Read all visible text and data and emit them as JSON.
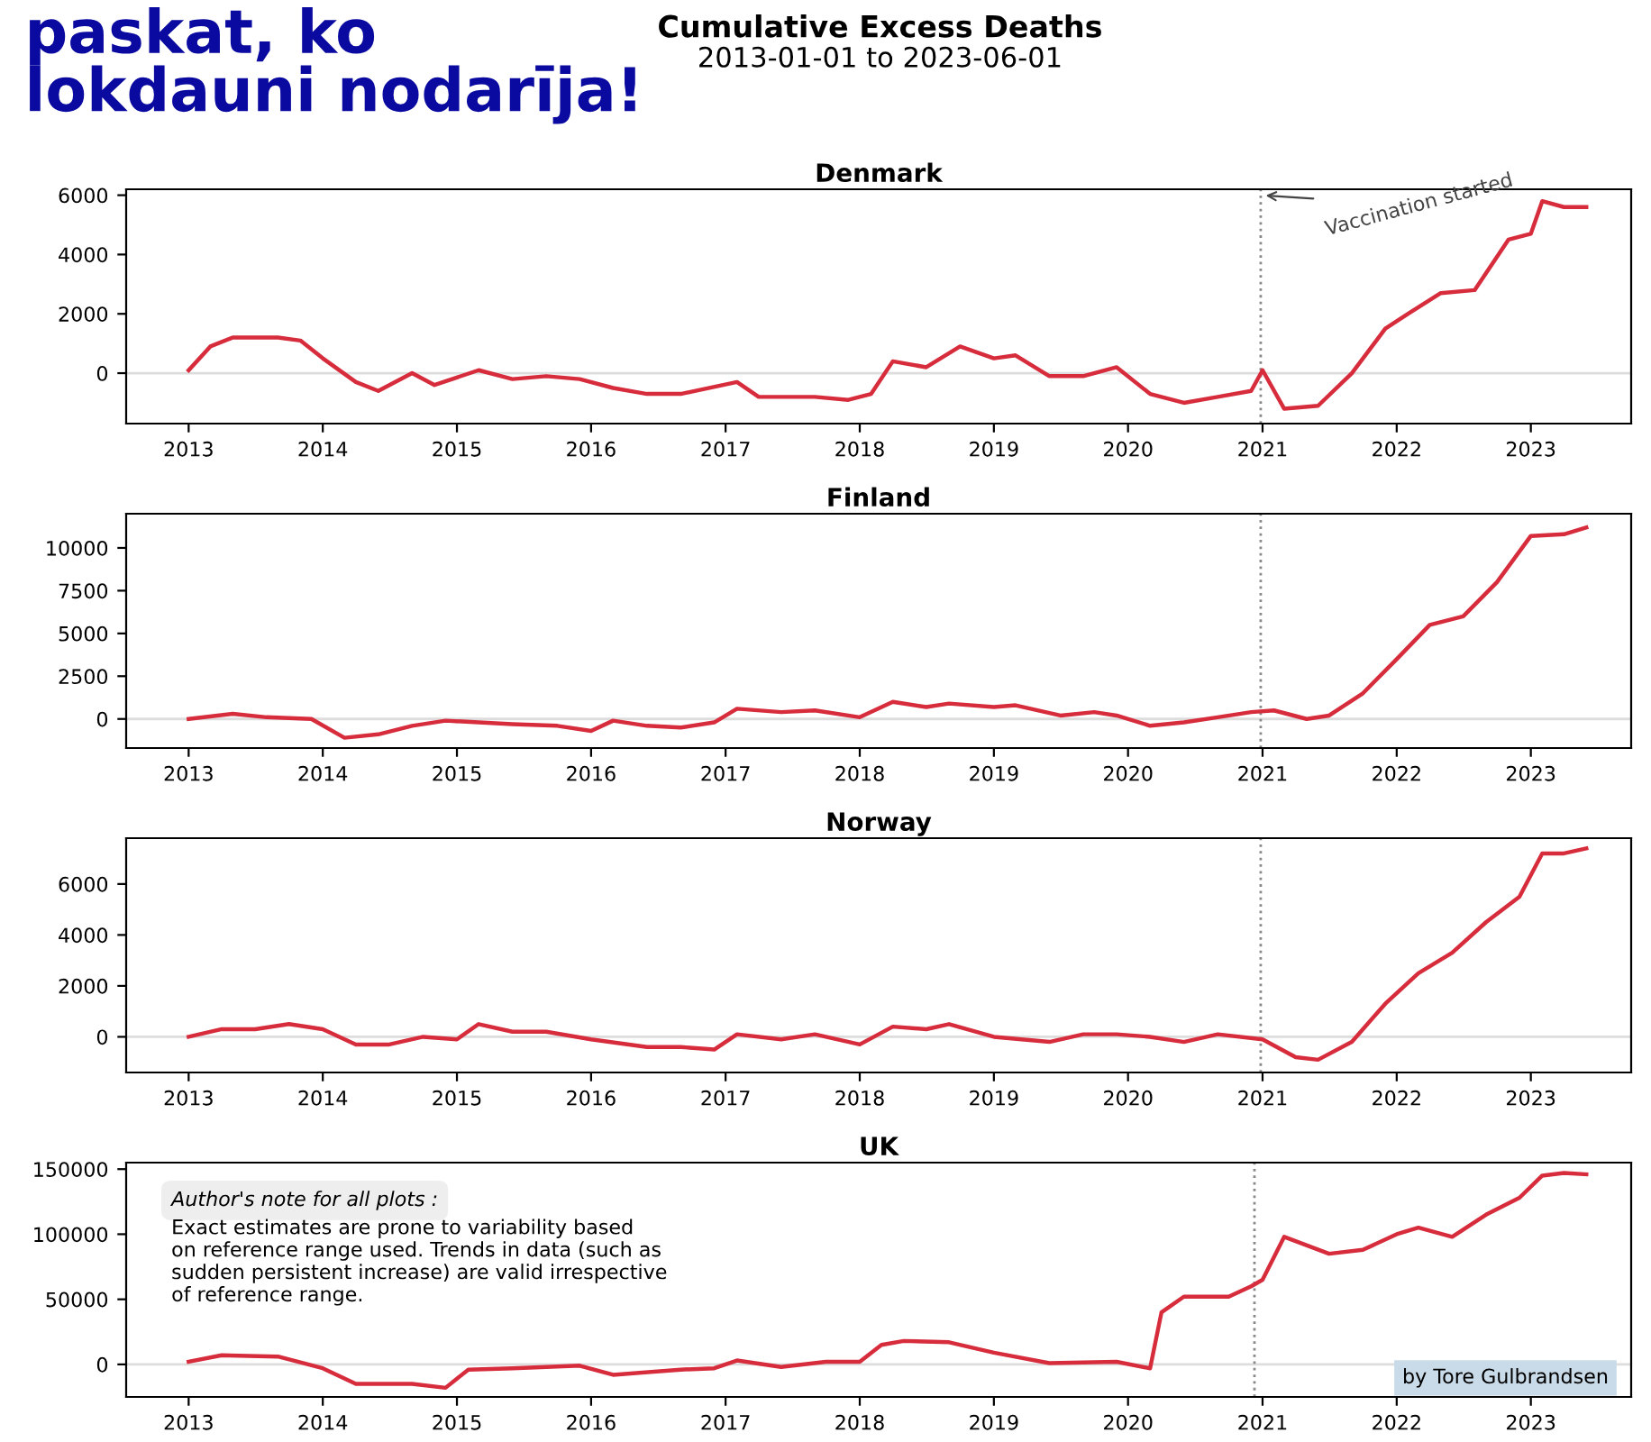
{
  "chart_data": [
    {
      "type": "other",
      "title": "Cumulative Excess Deaths",
      "subtitle": "2013-01-01 to 2023-06-01",
      "annotations": [
        "paskat, ko\nlokdauni nodarīja!"
      ]
    },
    {
      "type": "line",
      "title": "Denmark",
      "x": [
        "2013-01",
        "2013-03",
        "2013-05",
        "2013-09",
        "2013-11",
        "2014-01",
        "2014-04",
        "2014-06",
        "2014-09",
        "2014-11",
        "2015-03",
        "2015-06",
        "2015-09",
        "2015-12",
        "2016-03",
        "2016-06",
        "2016-09",
        "2017-02",
        "2017-04",
        "2017-09",
        "2017-12",
        "2018-02",
        "2018-04",
        "2018-07",
        "2018-10",
        "2019-01",
        "2019-03",
        "2019-06",
        "2019-09",
        "2019-12",
        "2020-03",
        "2020-06",
        "2020-09",
        "2020-12",
        "2021-01",
        "2021-03",
        "2021-06",
        "2021-09",
        "2021-12",
        "2022-02",
        "2022-05",
        "2022-08",
        "2022-11",
        "2023-01",
        "2023-02",
        "2023-04",
        "2023-06"
      ],
      "series": [
        {
          "color": "#d62c3c",
          "values": [
            100,
            900,
            1200,
            1200,
            1100,
            500,
            -300,
            -600,
            0,
            -400,
            100,
            -200,
            -100,
            -200,
            -500,
            -700,
            -700,
            -300,
            -800,
            -800,
            -900,
            -700,
            400,
            200,
            900,
            500,
            600,
            -100,
            -100,
            200,
            -700,
            -1000,
            -800,
            -600,
            100,
            -1200,
            -1100,
            0,
            1500,
            2000,
            2700,
            2800,
            4500,
            4700,
            5800,
            5600,
            5600
          ]
        }
      ],
      "xlim": [
        "2012-07-15",
        "2023-10-01"
      ],
      "xticks": [
        {
          "value": "2013-01-01",
          "label": "2013"
        },
        {
          "value": "2014-01-01",
          "label": "2014"
        },
        {
          "value": "2015-01-01",
          "label": "2015"
        },
        {
          "value": "2016-01-01",
          "label": "2016"
        },
        {
          "value": "2017-01-01",
          "label": "2017"
        },
        {
          "value": "2018-01-01",
          "label": "2018"
        },
        {
          "value": "2019-01-01",
          "label": "2019"
        },
        {
          "value": "2020-01-01",
          "label": "2020"
        },
        {
          "value": "2021-01-01",
          "label": "2021"
        },
        {
          "value": "2022-01-01",
          "label": "2022"
        },
        {
          "value": "2023-01-01",
          "label": "2023"
        }
      ],
      "ylim": [
        -1700,
        6200
      ],
      "yticks": [
        0,
        2000,
        4000,
        6000
      ],
      "ref_lines": [
        {
          "axis": "x",
          "value": "2020-12-27",
          "color": "#888888",
          "line_style": "dotted"
        },
        {
          "axis": "y",
          "value": 0,
          "color": "#dddddd",
          "line_style": "solid"
        }
      ],
      "annotations": [
        {
          "text": "Vaccination started",
          "x": "2020-12-27",
          "y": 6000
        }
      ]
    },
    {
      "type": "line",
      "title": "Finland",
      "x": [
        "2013-01",
        "2013-05",
        "2013-08",
        "2013-12",
        "2014-03",
        "2014-06",
        "2014-09",
        "2014-12",
        "2015-03",
        "2015-06",
        "2015-10",
        "2016-01",
        "2016-03",
        "2016-06",
        "2016-09",
        "2016-12",
        "2017-02",
        "2017-06",
        "2017-09",
        "2018-01",
        "2018-04",
        "2018-07",
        "2018-09",
        "2019-01",
        "2019-03",
        "2019-07",
        "2019-10",
        "2019-12",
        "2020-03",
        "2020-06",
        "2020-09",
        "2020-12",
        "2021-02",
        "2021-05",
        "2021-07",
        "2021-10",
        "2022-01",
        "2022-04",
        "2022-07",
        "2022-10",
        "2023-01",
        "2023-04",
        "2023-06"
      ],
      "series": [
        {
          "color": "#d62c3c",
          "values": [
            0,
            300,
            100,
            0,
            -1100,
            -900,
            -400,
            -100,
            -200,
            -300,
            -400,
            -700,
            -100,
            -400,
            -500,
            -200,
            600,
            400,
            500,
            100,
            1000,
            700,
            900,
            700,
            800,
            200,
            400,
            200,
            -400,
            -200,
            100,
            400,
            500,
            0,
            200,
            1500,
            3500,
            5500,
            6000,
            8000,
            10700,
            10800,
            11200
          ]
        }
      ],
      "xlim": [
        "2012-07-15",
        "2023-10-01"
      ],
      "xticks": [
        {
          "value": "2013-01-01",
          "label": "2013"
        },
        {
          "value": "2014-01-01",
          "label": "2014"
        },
        {
          "value": "2015-01-01",
          "label": "2015"
        },
        {
          "value": "2016-01-01",
          "label": "2016"
        },
        {
          "value": "2017-01-01",
          "label": "2017"
        },
        {
          "value": "2018-01-01",
          "label": "2018"
        },
        {
          "value": "2019-01-01",
          "label": "2019"
        },
        {
          "value": "2020-01-01",
          "label": "2020"
        },
        {
          "value": "2021-01-01",
          "label": "2021"
        },
        {
          "value": "2022-01-01",
          "label": "2022"
        },
        {
          "value": "2023-01-01",
          "label": "2023"
        }
      ],
      "ylim": [
        -1700,
        12000
      ],
      "yticks": [
        0,
        2500,
        5000,
        7500,
        10000
      ],
      "ref_lines": [
        {
          "axis": "x",
          "value": "2020-12-27",
          "color": "#888888",
          "line_style": "dotted"
        },
        {
          "axis": "y",
          "value": 0,
          "color": "#dddddd",
          "line_style": "solid"
        }
      ]
    },
    {
      "type": "line",
      "title": "Norway",
      "x": [
        "2013-01",
        "2013-04",
        "2013-07",
        "2013-10",
        "2014-01",
        "2014-04",
        "2014-07",
        "2014-10",
        "2015-01",
        "2015-03",
        "2015-06",
        "2015-09",
        "2016-01",
        "2016-06",
        "2016-09",
        "2016-12",
        "2017-02",
        "2017-06",
        "2017-09",
        "2018-01",
        "2018-04",
        "2018-07",
        "2018-09",
        "2019-01",
        "2019-06",
        "2019-09",
        "2019-12",
        "2020-03",
        "2020-06",
        "2020-09",
        "2021-01",
        "2021-04",
        "2021-06",
        "2021-09",
        "2021-12",
        "2022-03",
        "2022-06",
        "2022-09",
        "2022-12",
        "2023-02",
        "2023-04",
        "2023-06"
      ],
      "series": [
        {
          "color": "#d62c3c",
          "values": [
            0,
            300,
            300,
            500,
            300,
            -300,
            -300,
            0,
            -100,
            500,
            200,
            200,
            -100,
            -400,
            -400,
            -500,
            100,
            -100,
            100,
            -300,
            400,
            300,
            500,
            0,
            -200,
            100,
            100,
            0,
            -200,
            100,
            -100,
            -800,
            -900,
            -200,
            1300,
            2500,
            3300,
            4500,
            5500,
            7200,
            7200,
            7400
          ]
        }
      ],
      "xlim": [
        "2012-07-15",
        "2023-10-01"
      ],
      "xticks": [
        {
          "value": "2013-01-01",
          "label": "2013"
        },
        {
          "value": "2014-01-01",
          "label": "2014"
        },
        {
          "value": "2015-01-01",
          "label": "2015"
        },
        {
          "value": "2016-01-01",
          "label": "2016"
        },
        {
          "value": "2017-01-01",
          "label": "2017"
        },
        {
          "value": "2018-01-01",
          "label": "2018"
        },
        {
          "value": "2019-01-01",
          "label": "2019"
        },
        {
          "value": "2020-01-01",
          "label": "2020"
        },
        {
          "value": "2021-01-01",
          "label": "2021"
        },
        {
          "value": "2022-01-01",
          "label": "2022"
        },
        {
          "value": "2023-01-01",
          "label": "2023"
        }
      ],
      "ylim": [
        -1400,
        7800
      ],
      "yticks": [
        0,
        2000,
        4000,
        6000
      ],
      "ref_lines": [
        {
          "axis": "x",
          "value": "2020-12-27",
          "color": "#888888",
          "line_style": "dotted"
        },
        {
          "axis": "y",
          "value": 0,
          "color": "#dddddd",
          "line_style": "solid"
        }
      ]
    },
    {
      "type": "line",
      "title": "UK",
      "x": [
        "2013-01",
        "2013-04",
        "2013-09",
        "2014-01",
        "2014-04",
        "2014-09",
        "2014-12",
        "2015-02",
        "2015-06",
        "2015-12",
        "2016-03",
        "2016-09",
        "2016-12",
        "2017-02",
        "2017-06",
        "2017-10",
        "2018-01",
        "2018-03",
        "2018-05",
        "2018-09",
        "2019-01",
        "2019-06",
        "2019-12",
        "2020-03",
        "2020-04",
        "2020-06",
        "2020-10",
        "2020-12",
        "2021-01",
        "2021-03",
        "2021-07",
        "2021-10",
        "2022-01",
        "2022-03",
        "2022-06",
        "2022-09",
        "2022-12",
        "2023-02",
        "2023-04",
        "2023-06"
      ],
      "series": [
        {
          "color": "#d62c3c",
          "values": [
            2000,
            7000,
            6000,
            -3000,
            -15000,
            -15000,
            -18000,
            -4000,
            -3000,
            -1000,
            -8000,
            -4000,
            -3000,
            3000,
            -2000,
            2000,
            2000,
            15000,
            18000,
            17000,
            9000,
            1000,
            2000,
            -3000,
            40000,
            52000,
            52000,
            60000,
            65000,
            98000,
            85000,
            88000,
            100000,
            105000,
            98000,
            115000,
            128000,
            145000,
            147000,
            146000
          ]
        }
      ],
      "xlim": [
        "2012-07-15",
        "2023-10-01"
      ],
      "xticks": [
        {
          "value": "2013-01-01",
          "label": "2013"
        },
        {
          "value": "2014-01-01",
          "label": "2014"
        },
        {
          "value": "2015-01-01",
          "label": "2015"
        },
        {
          "value": "2016-01-01",
          "label": "2016"
        },
        {
          "value": "2017-01-01",
          "label": "2017"
        },
        {
          "value": "2018-01-01",
          "label": "2018"
        },
        {
          "value": "2019-01-01",
          "label": "2019"
        },
        {
          "value": "2020-01-01",
          "label": "2020"
        },
        {
          "value": "2021-01-01",
          "label": "2021"
        },
        {
          "value": "2022-01-01",
          "label": "2022"
        },
        {
          "value": "2023-01-01",
          "label": "2023"
        }
      ],
      "ylim": [
        -25000,
        155000
      ],
      "yticks": [
        0,
        50000,
        100000,
        150000
      ],
      "ref_lines": [
        {
          "axis": "x",
          "value": "2020-12-10",
          "color": "#888888",
          "line_style": "dotted"
        },
        {
          "axis": "y",
          "value": 0,
          "color": "#dddddd",
          "line_style": "solid"
        }
      ],
      "annotations": [
        "Author's note for all plots :",
        "Exact estimates are prone to variability based\non reference range used. Trends in data (such as\nsudden persistent increase) are valid irrespective\nof reference range.",
        "by Tore Gulbrandsen"
      ]
    }
  ]
}
